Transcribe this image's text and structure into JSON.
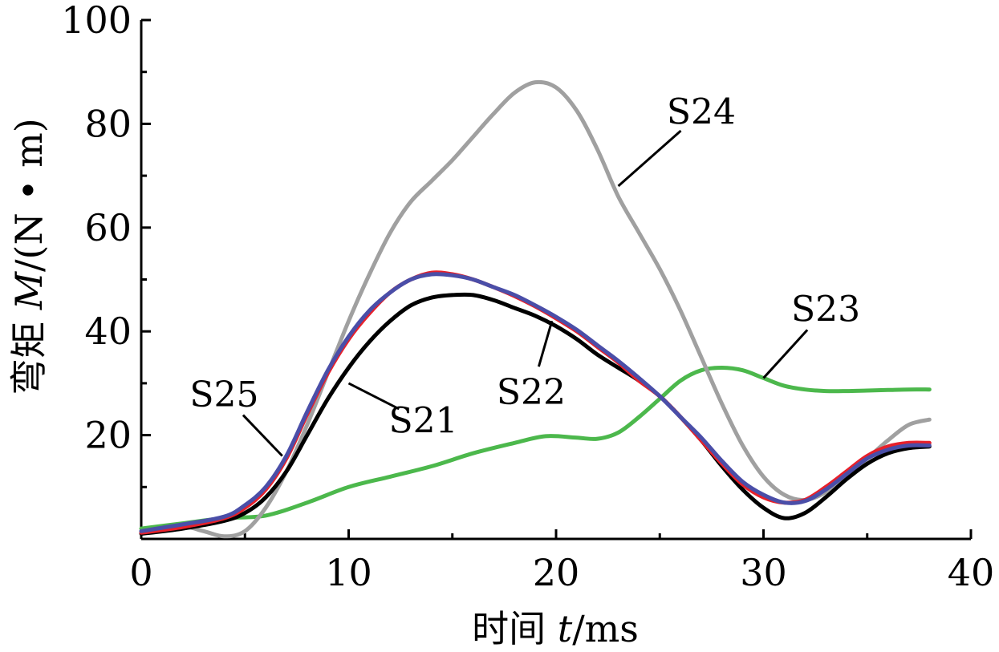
{
  "chart_data": {
    "type": "line",
    "xlabel": {
      "prefix": "时间 ",
      "var": "t",
      "unit": "/ms"
    },
    "ylabel": {
      "prefix": "弯矩 ",
      "var": "M",
      "unit": "/(N • m)"
    },
    "xlim": [
      0,
      40
    ],
    "ylim": [
      0,
      100
    ],
    "xticks": [
      0,
      10,
      20,
      30,
      40
    ],
    "yticks": [
      20,
      40,
      60,
      80,
      100
    ],
    "grid": false,
    "colors": {
      "S21": "#000000",
      "S22": "#e8202a",
      "S23": "#4cb84c",
      "S24": "#a0a0a0",
      "S25": "#4a4ea8"
    },
    "series": [
      {
        "name": "S23",
        "points": [
          [
            0,
            2
          ],
          [
            2,
            3
          ],
          [
            4,
            4
          ],
          [
            6,
            4.5
          ],
          [
            8,
            7
          ],
          [
            10,
            10
          ],
          [
            12,
            12
          ],
          [
            14,
            14
          ],
          [
            16,
            16.5
          ],
          [
            18,
            18.5
          ],
          [
            19.5,
            19.8
          ],
          [
            21,
            19.5
          ],
          [
            22,
            19.3
          ],
          [
            23,
            20.5
          ],
          [
            24,
            23.5
          ],
          [
            25,
            27
          ],
          [
            26,
            30.5
          ],
          [
            27,
            32.5
          ],
          [
            28,
            33
          ],
          [
            29,
            32.5
          ],
          [
            30,
            31
          ],
          [
            31,
            29.5
          ],
          [
            32,
            28.8
          ],
          [
            33,
            28.5
          ],
          [
            34,
            28.5
          ],
          [
            35,
            28.6
          ],
          [
            36,
            28.7
          ],
          [
            37,
            28.8
          ],
          [
            38,
            28.8
          ]
        ]
      },
      {
        "name": "S24",
        "points": [
          [
            0,
            1.5
          ],
          [
            2,
            2.3
          ],
          [
            3,
            1.5
          ],
          [
            4,
            0.5
          ],
          [
            5,
            1.5
          ],
          [
            6,
            6
          ],
          [
            7,
            13
          ],
          [
            8,
            22
          ],
          [
            9,
            32
          ],
          [
            10,
            42
          ],
          [
            11,
            51
          ],
          [
            12,
            59
          ],
          [
            13,
            65
          ],
          [
            14,
            69
          ],
          [
            15,
            73
          ],
          [
            16,
            77.5
          ],
          [
            17,
            82
          ],
          [
            18,
            86
          ],
          [
            19,
            88
          ],
          [
            20,
            87
          ],
          [
            21,
            82.5
          ],
          [
            22,
            75
          ],
          [
            23,
            66
          ],
          [
            24,
            59
          ],
          [
            25,
            52
          ],
          [
            26,
            44
          ],
          [
            27,
            35
          ],
          [
            28,
            26
          ],
          [
            29,
            18
          ],
          [
            30,
            12
          ],
          [
            31,
            8.5
          ],
          [
            32,
            7.5
          ],
          [
            33,
            9
          ],
          [
            34,
            12
          ],
          [
            35,
            15.5
          ],
          [
            36,
            19
          ],
          [
            37,
            22
          ],
          [
            38,
            23
          ]
        ]
      },
      {
        "name": "S21",
        "points": [
          [
            0,
            1
          ],
          [
            2,
            2
          ],
          [
            4,
            3.5
          ],
          [
            5,
            5
          ],
          [
            6,
            8
          ],
          [
            7,
            13
          ],
          [
            8,
            20
          ],
          [
            9,
            27
          ],
          [
            10,
            33
          ],
          [
            11,
            38
          ],
          [
            12,
            42
          ],
          [
            13,
            45
          ],
          [
            14,
            46.5
          ],
          [
            15,
            47
          ],
          [
            16,
            47
          ],
          [
            17,
            46
          ],
          [
            18,
            44.5
          ],
          [
            19,
            43
          ],
          [
            20,
            41
          ],
          [
            21,
            38.5
          ],
          [
            22,
            35.5
          ],
          [
            23,
            33
          ],
          [
            24,
            30.5
          ],
          [
            25,
            27.5
          ],
          [
            26,
            23.5
          ],
          [
            27,
            19
          ],
          [
            28,
            14
          ],
          [
            29,
            9.5
          ],
          [
            30,
            6
          ],
          [
            31,
            4
          ],
          [
            32,
            5
          ],
          [
            33,
            8
          ],
          [
            34,
            11.5
          ],
          [
            35,
            14.5
          ],
          [
            36,
            16.5
          ],
          [
            37,
            17.5
          ],
          [
            38,
            17.8
          ]
        ]
      },
      {
        "name": "S22",
        "points": [
          [
            0,
            1.2
          ],
          [
            2,
            2.3
          ],
          [
            4,
            4
          ],
          [
            5,
            6
          ],
          [
            6,
            9.5
          ],
          [
            7,
            15.5
          ],
          [
            8,
            24
          ],
          [
            9,
            32
          ],
          [
            10,
            38.5
          ],
          [
            11,
            43.5
          ],
          [
            12,
            47.5
          ],
          [
            13,
            50
          ],
          [
            14,
            51.3
          ],
          [
            15,
            51
          ],
          [
            16,
            50
          ],
          [
            17,
            48.5
          ],
          [
            18,
            46.8
          ],
          [
            19,
            44.8
          ],
          [
            20,
            42.5
          ],
          [
            21,
            40
          ],
          [
            22,
            37
          ],
          [
            23,
            34
          ],
          [
            24,
            30.5
          ],
          [
            25,
            27.5
          ],
          [
            26,
            23.5
          ],
          [
            27,
            19
          ],
          [
            28,
            14.5
          ],
          [
            29,
            10.5
          ],
          [
            30,
            8
          ],
          [
            31,
            7
          ],
          [
            32,
            7.5
          ],
          [
            33,
            10
          ],
          [
            34,
            13
          ],
          [
            35,
            16
          ],
          [
            36,
            17.8
          ],
          [
            37,
            18.5
          ],
          [
            38,
            18.5
          ]
        ]
      },
      {
        "name": "S25",
        "points": [
          [
            0,
            1.5
          ],
          [
            2,
            2.8
          ],
          [
            4,
            4.3
          ],
          [
            5,
            6.5
          ],
          [
            6,
            10
          ],
          [
            7,
            16
          ],
          [
            8,
            24.5
          ],
          [
            9,
            32.5
          ],
          [
            10,
            39
          ],
          [
            11,
            44
          ],
          [
            12,
            47.5
          ],
          [
            13,
            50
          ],
          [
            14,
            51
          ],
          [
            15,
            50.8
          ],
          [
            16,
            50
          ],
          [
            17,
            48.5
          ],
          [
            18,
            47
          ],
          [
            19,
            45
          ],
          [
            20,
            42.8
          ],
          [
            21,
            40.3
          ],
          [
            22,
            37.3
          ],
          [
            23,
            34.3
          ],
          [
            24,
            31
          ],
          [
            25,
            27.5
          ],
          [
            26,
            23.5
          ],
          [
            27,
            19.5
          ],
          [
            28,
            15
          ],
          [
            29,
            11
          ],
          [
            30,
            8.5
          ],
          [
            31,
            7
          ],
          [
            32,
            7.3
          ],
          [
            33,
            9.5
          ],
          [
            34,
            12.5
          ],
          [
            35,
            15.5
          ],
          [
            36,
            17.2
          ],
          [
            37,
            18
          ],
          [
            38,
            18
          ]
        ]
      }
    ],
    "annotations": [
      {
        "text": "S24",
        "series": "S24",
        "text_at": [
          27,
          80
        ],
        "point": [
          23,
          68
        ]
      },
      {
        "text": "S23",
        "series": "S23",
        "text_at": [
          33,
          42
        ],
        "point": [
          30,
          31
        ]
      },
      {
        "text": "S25",
        "series": "S25",
        "text_at": [
          4,
          25.5
        ],
        "point": [
          6.8,
          16
        ]
      },
      {
        "text": "S21",
        "series": "S21",
        "text_at": [
          13.6,
          20.5
        ],
        "point": [
          10,
          30
        ]
      },
      {
        "text": "S22",
        "series": "S22",
        "text_at": [
          18.8,
          26
        ],
        "point": [
          19.8,
          42
        ]
      }
    ]
  }
}
